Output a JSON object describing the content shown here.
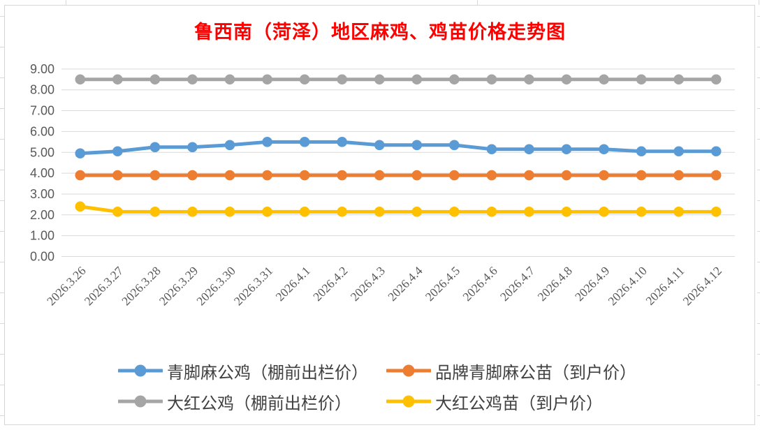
{
  "chart_data": {
    "type": "line",
    "title": "鲁西南（菏泽）地区麻鸡、鸡苗价格走势图",
    "title_color": "#FF0000",
    "categories": [
      "2026.3.26",
      "2026.3.27",
      "2026.3.28",
      "2026.3.29",
      "2026.3.30",
      "2026.3.31",
      "2026.4.1",
      "2026.4.2",
      "2026.4.3",
      "2026.4.4",
      "2026.4.5",
      "2026.4.6",
      "2026.4.7",
      "2026.4.8",
      "2026.4.9",
      "2026.4.10",
      "2026.4.11",
      "2026.4.12"
    ],
    "series": [
      {
        "name": "青脚麻公鸡（棚前出栏价）",
        "color": "#5B9BD5",
        "values": [
          4.95,
          5.05,
          5.25,
          5.25,
          5.35,
          5.5,
          5.5,
          5.5,
          5.35,
          5.35,
          5.35,
          5.15,
          5.15,
          5.15,
          5.15,
          5.05,
          5.05,
          5.05
        ]
      },
      {
        "name": "品牌青脚麻公苗（到户价）",
        "color": "#ED7D31",
        "values": [
          3.9,
          3.9,
          3.9,
          3.9,
          3.9,
          3.9,
          3.9,
          3.9,
          3.9,
          3.9,
          3.9,
          3.9,
          3.9,
          3.9,
          3.9,
          3.9,
          3.9,
          3.9
        ]
      },
      {
        "name": "大红公鸡（棚前出栏价）",
        "color": "#A5A5A5",
        "values": [
          8.5,
          8.5,
          8.5,
          8.5,
          8.5,
          8.5,
          8.5,
          8.5,
          8.5,
          8.5,
          8.5,
          8.5,
          8.5,
          8.5,
          8.5,
          8.5,
          8.5,
          8.5
        ]
      },
      {
        "name": "大红公鸡苗（到户价）",
        "color": "#FFC000",
        "values": [
          2.4,
          2.15,
          2.15,
          2.15,
          2.15,
          2.15,
          2.15,
          2.15,
          2.15,
          2.15,
          2.15,
          2.15,
          2.15,
          2.15,
          2.15,
          2.15,
          2.15,
          2.15
        ]
      }
    ],
    "xlabel": "",
    "ylabel": "",
    "ylim": [
      0,
      9
    ],
    "ytick_step": 1,
    "ytick_labels": [
      "0.00",
      "1.00",
      "2.00",
      "3.00",
      "4.00",
      "5.00",
      "6.00",
      "7.00",
      "8.00",
      "9.00"
    ],
    "grid": "horizontal",
    "gridline_color": "#D9D9D9",
    "tick_label_color": "#595959",
    "legend_position": "bottom",
    "legend_text_color": "#404040",
    "marker": "circle"
  }
}
